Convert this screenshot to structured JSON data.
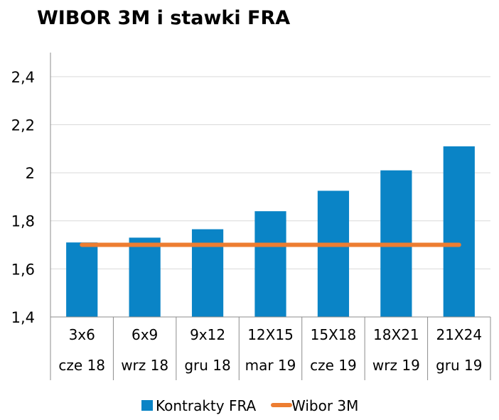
{
  "chart_data": {
    "type": "bar",
    "title": "WIBOR 3M i stawki FRA",
    "categories": [
      "3x6",
      "6x9",
      "9x12",
      "12X15",
      "15X18",
      "18X21",
      "21X24"
    ],
    "category_dates": [
      "cze 18",
      "wrz 18",
      "gru 18",
      "mar 19",
      "cze 19",
      "wrz 19",
      "gru 19"
    ],
    "series": [
      {
        "name": "Kontrakty FRA",
        "type": "bar",
        "color": "#0a84c6",
        "values": [
          1.71,
          1.73,
          1.765,
          1.84,
          1.925,
          2.01,
          2.11
        ]
      },
      {
        "name": "Wibor 3M",
        "type": "line",
        "color": "#ed7d31",
        "values": [
          1.7,
          1.7,
          1.7,
          1.7,
          1.7,
          1.7,
          1.7
        ]
      }
    ],
    "ylim": [
      1.4,
      2.5
    ],
    "yticks": [
      1.4,
      1.6,
      1.8,
      2.0,
      2.2,
      2.4
    ],
    "ytick_labels": [
      "1,4",
      "1,6",
      "1,8",
      "2",
      "2,2",
      "2,4"
    ],
    "grid": true,
    "legend": "bottom"
  }
}
